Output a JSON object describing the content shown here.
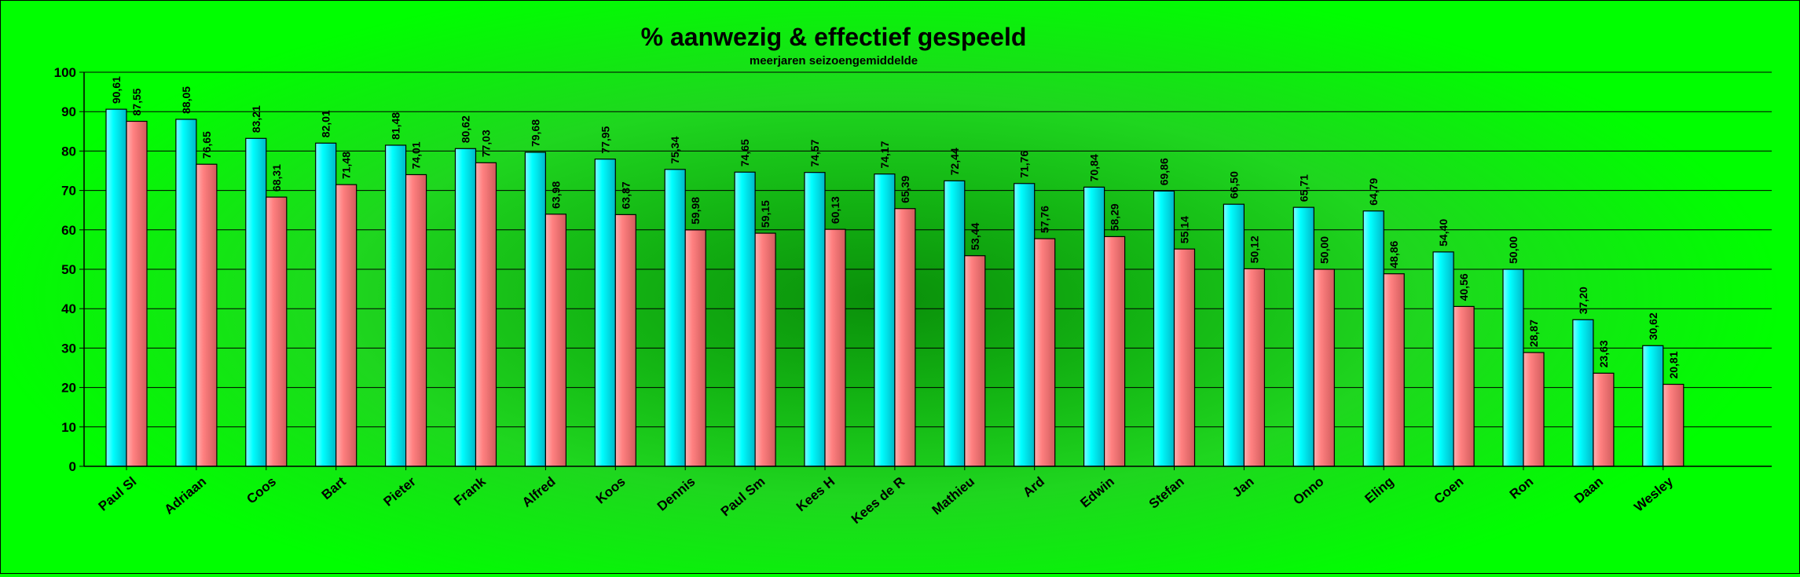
{
  "chart_data": {
    "type": "bar",
    "title": "% aanwezig & effectief gespeeld",
    "subtitle": "meerjaren seizoengemiddelde",
    "xlabel": "",
    "ylabel": "",
    "ylim": [
      0,
      100
    ],
    "yticks": [
      0,
      10,
      20,
      30,
      40,
      50,
      60,
      70,
      80,
      90,
      100
    ],
    "grid": true,
    "legend": "none",
    "categories": [
      "Paul Sl",
      "Adriaan",
      "Coos",
      "Bart",
      "Pieter",
      "Frank",
      "Alfred",
      "Koos",
      "Dennis",
      "Paul Sm",
      "Kees H",
      "Kees  de R",
      "Mathieu",
      "Ard",
      "Edwin",
      "Stefan",
      "Jan",
      "Onno",
      "Eling",
      "Coen",
      "Ron",
      "Daan",
      "Wesley"
    ],
    "series": [
      {
        "values": [
          90.61,
          88.05,
          83.21,
          82.01,
          81.48,
          80.62,
          79.68,
          77.95,
          75.34,
          74.65,
          74.57,
          74.17,
          72.44,
          71.76,
          70.84,
          69.86,
          66.5,
          65.71,
          64.79,
          54.4,
          50.0,
          37.2,
          30.62
        ],
        "labels": [
          "90,61",
          "88,05",
          "83,21",
          "82,01",
          "81,48",
          "80,62",
          "79,68",
          "77,95",
          "75,34",
          "74,65",
          "74,57",
          "74,17",
          "72,44",
          "71,76",
          "70,84",
          "69,86",
          "66,50",
          "65,71",
          "64,79",
          "54,40",
          "50,00",
          "37,20",
          "30,62"
        ],
        "color": "#00ffff"
      },
      {
        "values": [
          87.55,
          76.65,
          68.31,
          71.48,
          74.01,
          77.03,
          63.98,
          63.87,
          59.98,
          59.15,
          60.13,
          65.39,
          53.44,
          57.76,
          58.29,
          55.14,
          50.12,
          50.0,
          48.86,
          40.56,
          28.87,
          23.63,
          20.81
        ],
        "labels": [
          "87,55",
          "76,65",
          "68,31",
          "71,48",
          "74,01",
          "77,03",
          "63,98",
          "63,87",
          "59,98",
          "59,15",
          "60,13",
          "65,39",
          "53,44",
          "57,76",
          "58,29",
          "55,14",
          "50,12",
          "50,00",
          "48,86",
          "40,56",
          "28,87",
          "23,63",
          "20,81"
        ],
        "color": "#ff8080"
      }
    ]
  }
}
